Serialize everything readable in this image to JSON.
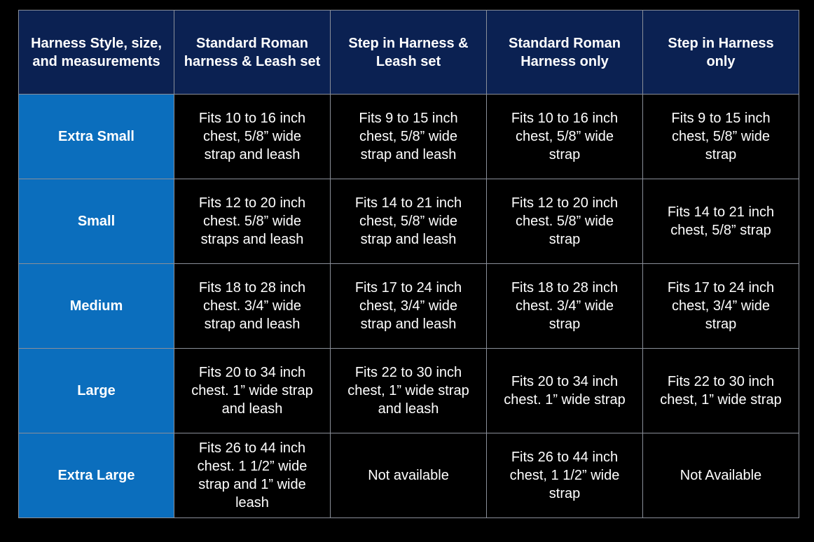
{
  "colors": {
    "header_bg": "#0b2152",
    "size_col_bg": "#0b6ebd",
    "cell_bg": "#000000",
    "grid": "#8a8f99"
  },
  "table": {
    "headers": [
      "Harness Style, size,\nand measurements",
      "Standard Roman\nharness & Leash set",
      "Step in Harness &\nLeash set",
      "Standard Roman\nHarness only",
      "Step in Harness\nonly"
    ],
    "rows": [
      {
        "size": "Extra Small",
        "cells": [
          "Fits 10 to 16 inch\nchest, 5/8” wide\nstrap and leash",
          "Fits 9 to 15 inch\nchest, 5/8” wide\nstrap and leash",
          "Fits 10 to 16 inch\nchest, 5/8” wide\nstrap",
          "Fits 9 to 15 inch\nchest, 5/8” wide\nstrap"
        ]
      },
      {
        "size": "Small",
        "cells": [
          "Fits 12 to 20 inch\nchest. 5/8” wide\nstraps and leash",
          "Fits 14 to 21 inch\nchest, 5/8” wide\nstrap and leash",
          "Fits 12 to 20 inch\nchest. 5/8” wide\nstrap",
          "Fits 14 to 21 inch\nchest, 5/8” strap"
        ]
      },
      {
        "size": "Medium",
        "cells": [
          "Fits 18 to 28 inch\nchest. 3/4” wide\nstrap and leash",
          "Fits 17 to 24 inch\nchest, 3/4” wide\nstrap and leash",
          "Fits 18 to 28 inch\nchest. 3/4” wide\nstrap",
          "Fits 17 to 24 inch\nchest, 3/4” wide\nstrap"
        ]
      },
      {
        "size": "Large",
        "cells": [
          "Fits 20 to 34 inch\nchest. 1” wide strap\nand leash",
          "Fits 22 to 30 inch\nchest, 1” wide strap\nand leash",
          "Fits 20 to 34 inch\nchest. 1” wide strap",
          "Fits 22 to 30 inch\nchest, 1” wide strap"
        ]
      },
      {
        "size": "Extra Large",
        "cells": [
          "Fits 26 to 44 inch\nchest. 1 1/2” wide\nstrap and 1” wide\nleash",
          "Not available",
          "Fits 26 to 44 inch\nchest, 1 1/2” wide\nstrap",
          "Not Available"
        ]
      }
    ]
  }
}
